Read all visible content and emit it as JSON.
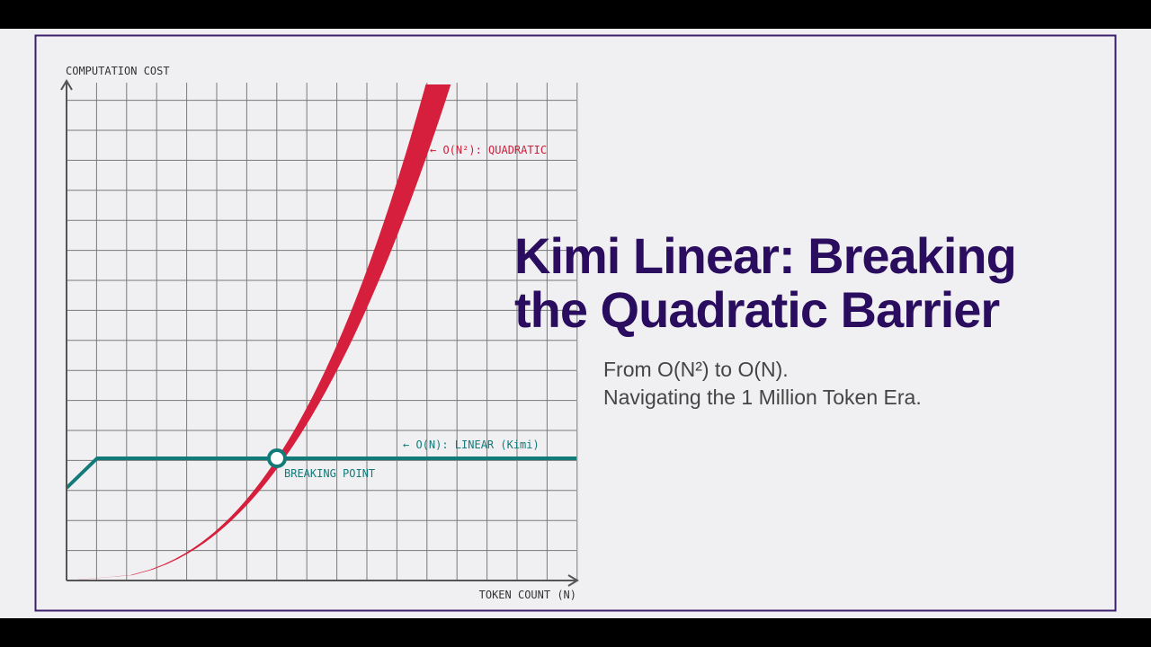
{
  "chart": {
    "y_axis_label": "COMPUTATION COST",
    "x_axis_label": "TOKEN COUNT (N)",
    "quadratic_label": "← O(N²): QUADRATIC",
    "linear_label": "← O(N): LINEAR (Kimi)",
    "breaking_point_label": "BREAKING POINT"
  },
  "header": {
    "title_line_1": "Kimi Linear: Breaking",
    "title_line_2": "the Quadratic Barrier",
    "subtitle_line_1": "From O(N²) to O(N).",
    "subtitle_line_2": "Navigating the 1 Million Token Era."
  }
}
